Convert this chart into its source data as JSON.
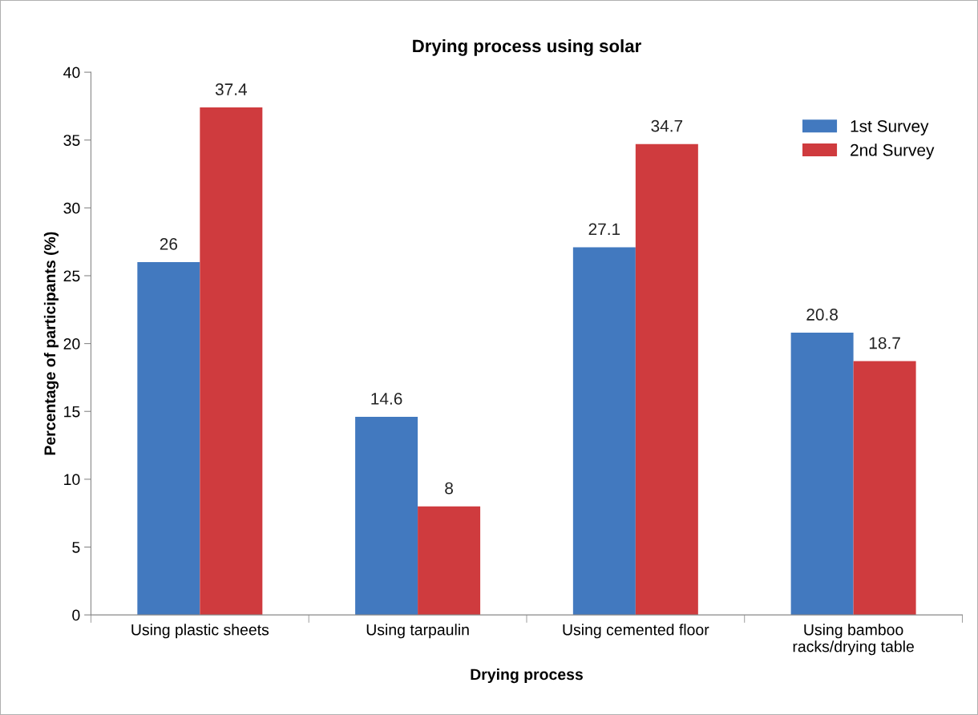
{
  "chart_data": {
    "type": "bar",
    "title": "Drying process using solar",
    "xlabel": "Drying process",
    "ylabel": "Percentage of participants (%)",
    "categories": [
      "Using plastic sheets",
      "Using tarpaulin",
      "Using cemented floor",
      "Using bamboo\nracks/drying table"
    ],
    "series": [
      {
        "name": "1st Survey",
        "color": "#4279bf",
        "values": [
          26,
          14.6,
          27.1,
          20.8
        ]
      },
      {
        "name": "2nd Survey",
        "color": "#cf3b3e",
        "values": [
          37.4,
          8,
          34.7,
          18.7
        ]
      }
    ],
    "ylim": [
      0,
      40
    ],
    "yticks": [
      0,
      5,
      10,
      15,
      20,
      25,
      30,
      35,
      40
    ],
    "data_labels": true,
    "legend": "top right",
    "grid": false
  }
}
